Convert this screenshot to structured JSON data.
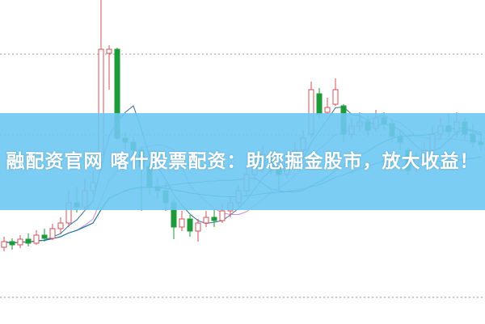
{
  "banner": {
    "text": "融配资官网 喀什股票配资：助您掘金股市，放大收益！"
  },
  "colors": {
    "up": "#d0505a",
    "down": "#1f9a3a",
    "banner": "#6ec8f2",
    "grid": "#999999"
  },
  "chart_data": {
    "type": "candlestick",
    "title": "",
    "xlabel": "",
    "ylabel": "",
    "grid": "dotted horizontal",
    "candles_ohlc": [
      [
        95,
        108,
        90,
        102
      ],
      [
        102,
        106,
        92,
        98
      ],
      [
        98,
        110,
        94,
        105
      ],
      [
        105,
        112,
        96,
        100
      ],
      [
        100,
        116,
        98,
        110
      ],
      [
        110,
        118,
        102,
        106
      ],
      [
        106,
        124,
        104,
        118
      ],
      [
        118,
        132,
        112,
        125
      ],
      [
        125,
        165,
        120,
        150
      ],
      [
        150,
        170,
        138,
        145
      ],
      [
        145,
        180,
        140,
        165
      ],
      [
        165,
        190,
        160,
        175
      ],
      [
        200,
        401,
        190,
        340
      ],
      [
        335,
        345,
        290,
        340
      ],
      [
        340,
        342,
        228,
        230
      ],
      [
        230,
        238,
        215,
        225
      ],
      [
        225,
        232,
        200,
        215
      ],
      [
        215,
        220,
        140,
        195
      ],
      [
        195,
        200,
        160,
        170
      ],
      [
        170,
        180,
        155,
        165
      ],
      [
        165,
        175,
        140,
        150
      ],
      [
        150,
        155,
        105,
        120
      ],
      [
        120,
        140,
        115,
        130
      ],
      [
        130,
        135,
        108,
        115
      ],
      [
        115,
        130,
        102,
        125
      ],
      [
        125,
        140,
        120,
        132
      ],
      [
        132,
        142,
        120,
        128
      ],
      [
        128,
        148,
        125,
        140
      ],
      [
        140,
        158,
        132,
        150
      ],
      [
        150,
        172,
        145,
        165
      ],
      [
        165,
        195,
        160,
        185
      ],
      [
        185,
        205,
        178,
        195
      ],
      [
        195,
        220,
        188,
        210
      ],
      [
        210,
        215,
        185,
        195
      ],
      [
        195,
        200,
        165,
        185
      ],
      [
        185,
        210,
        180,
        200
      ],
      [
        200,
        225,
        195,
        215
      ],
      [
        215,
        240,
        210,
        230
      ],
      [
        235,
        300,
        230,
        290
      ],
      [
        285,
        292,
        255,
        260
      ],
      [
        262,
        280,
        260,
        268
      ],
      [
        272,
        304,
        270,
        290
      ],
      [
        270,
        272,
        225,
        235
      ],
      [
        235,
        255,
        230,
        245
      ],
      [
        245,
        262,
        238,
        250
      ],
      [
        250,
        258,
        232,
        240
      ],
      [
        242,
        265,
        238,
        255
      ],
      [
        255,
        262,
        240,
        248
      ],
      [
        248,
        255,
        225,
        232
      ],
      [
        232,
        240,
        215,
        225
      ],
      [
        215,
        218,
        185,
        190
      ],
      [
        195,
        212,
        188,
        205
      ],
      [
        205,
        225,
        198,
        215
      ],
      [
        215,
        245,
        210,
        235
      ],
      [
        235,
        255,
        228,
        245
      ],
      [
        245,
        260,
        232,
        238
      ],
      [
        238,
        262,
        230,
        250
      ],
      [
        250,
        255,
        228,
        235
      ],
      [
        235,
        248,
        218,
        225
      ],
      [
        225,
        238,
        215,
        222
      ]
    ],
    "moving_averages": [
      {
        "period": 5,
        "color": "#3c6e9c"
      },
      {
        "period": 10,
        "color": "#c98ad8"
      },
      {
        "period": 20,
        "color": "#2e8b57"
      },
      {
        "period": 40,
        "color": "#1a6fa0"
      }
    ]
  }
}
